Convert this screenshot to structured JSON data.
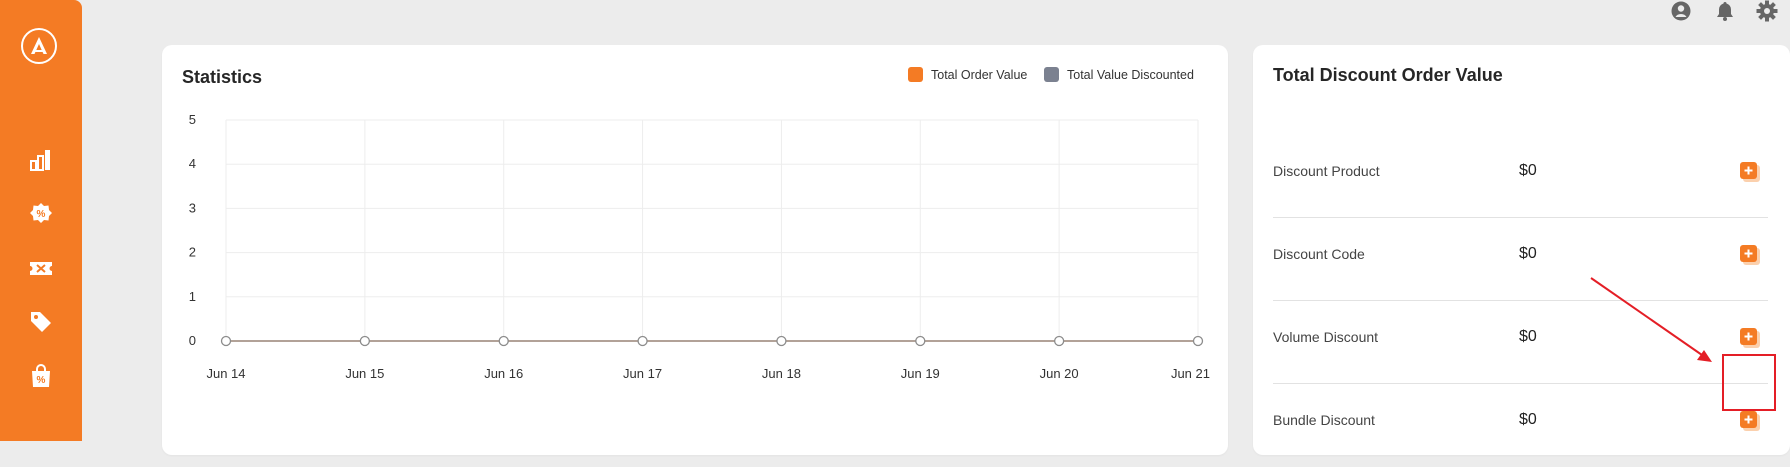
{
  "header": {
    "icons": [
      "account-circle-icon",
      "bell-icon",
      "gear-icon"
    ]
  },
  "sidebar": {
    "logo": "app-logo",
    "items": [
      {
        "icon": "bar-chart-icon"
      },
      {
        "icon": "discount-badge-icon"
      },
      {
        "icon": "ticket-icon"
      },
      {
        "icon": "tag-icon"
      },
      {
        "icon": "shopping-bag-percent-icon"
      }
    ]
  },
  "statistics": {
    "title": "Statistics",
    "legend": [
      {
        "label": "Total Order Value",
        "color": "#f47b24"
      },
      {
        "label": "Total Value Discounted",
        "color": "#7b8190"
      }
    ]
  },
  "chart_data": {
    "type": "line",
    "title": "Statistics",
    "categories": [
      "Jun 14",
      "Jun 15",
      "Jun 16",
      "Jun 17",
      "Jun 18",
      "Jun 19",
      "Jun 20",
      "Jun 21"
    ],
    "yticks": [
      0,
      1,
      2,
      3,
      4,
      5
    ],
    "ylim": [
      0,
      5
    ],
    "grid": true,
    "legend_position": "top-right",
    "series": [
      {
        "name": "Total Order Value",
        "color": "#f47b24",
        "values": [
          0,
          0,
          0,
          0,
          0,
          0,
          0,
          0
        ]
      },
      {
        "name": "Total Value Discounted",
        "color": "#7b8190",
        "values": [
          0,
          0,
          0,
          0,
          0,
          0,
          0,
          0
        ]
      }
    ]
  },
  "discounts": {
    "title": "Total Discount Order Value",
    "rows": [
      {
        "label": "Discount Product",
        "value": "$0"
      },
      {
        "label": "Discount Code",
        "value": "$0"
      },
      {
        "label": "Volume Discount",
        "value": "$0"
      },
      {
        "label": "Bundle Discount",
        "value": "$0"
      }
    ]
  },
  "colors": {
    "accent": "#f47b24",
    "annotation": "#e41e26",
    "background": "#ececec"
  }
}
